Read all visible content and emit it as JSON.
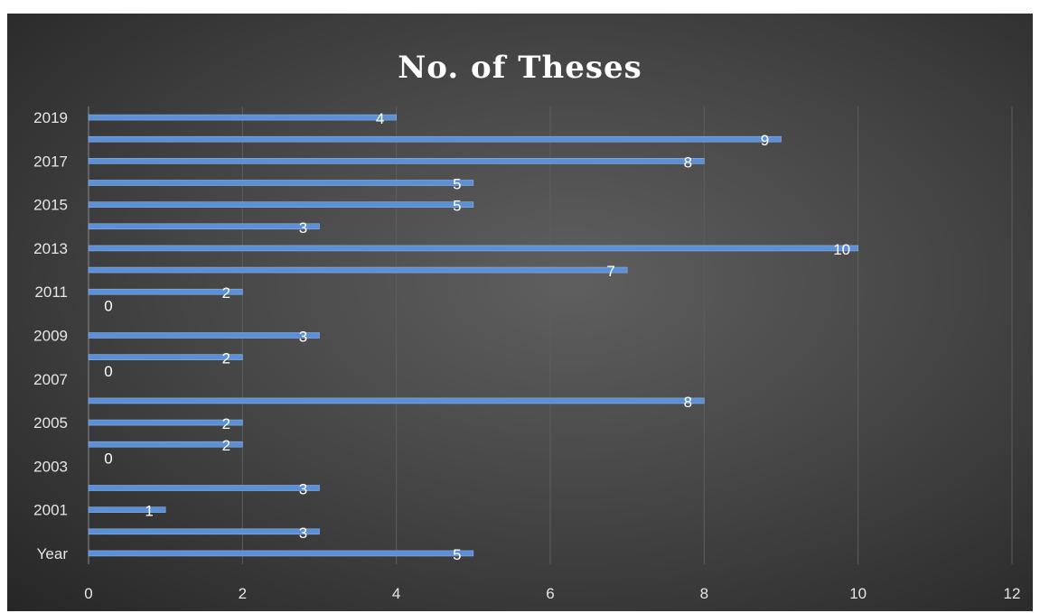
{
  "chart_data": {
    "type": "bar",
    "orientation": "horizontal",
    "title": "No. of Theses",
    "categories": [
      "Year",
      "",
      "2001",
      "",
      "2003",
      "",
      "2005",
      "",
      "2007",
      "",
      "2009",
      "",
      "2011",
      "",
      "2013",
      "",
      "2015",
      "",
      "2017",
      "",
      "2019"
    ],
    "values": [
      5,
      3,
      1,
      3,
      0,
      2,
      2,
      8,
      0,
      2,
      3,
      0,
      2,
      7,
      10,
      3,
      5,
      5,
      8,
      9,
      4
    ],
    "xlim": [
      0,
      12
    ],
    "x_ticks": [
      0,
      2,
      4,
      6,
      8,
      10,
      12
    ],
    "grid": true,
    "data_labels": true,
    "bar_color": "#5b8fd6",
    "background_color": "#3a3a3a"
  }
}
